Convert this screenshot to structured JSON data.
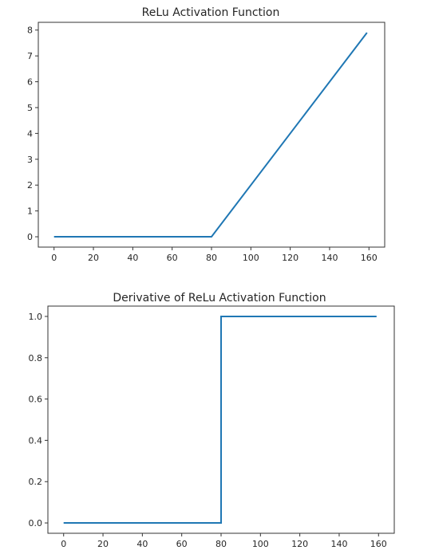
{
  "chart_data": [
    {
      "type": "line",
      "title": "ReLu Activation Function",
      "xlabel": "",
      "ylabel": "",
      "xlim": [
        -8,
        168
      ],
      "ylim": [
        -0.4,
        8.3
      ],
      "xticks": [
        0,
        20,
        40,
        60,
        80,
        100,
        120,
        140,
        160
      ],
      "yticks": [
        0,
        1,
        2,
        3,
        4,
        5,
        6,
        7,
        8
      ],
      "ytick_decimals": 0,
      "grid": false,
      "series": [
        {
          "color": "#1f77b4",
          "x": [
            0,
            80,
            159
          ],
          "y": [
            0,
            0,
            7.9
          ]
        }
      ]
    },
    {
      "type": "line",
      "title": "Derivative of ReLu Activation Function",
      "xlabel": "",
      "ylabel": "",
      "xlim": [
        -8,
        168
      ],
      "ylim": [
        -0.05,
        1.05
      ],
      "xticks": [
        0,
        20,
        40,
        60,
        80,
        100,
        120,
        140,
        160
      ],
      "yticks": [
        0.0,
        0.2,
        0.4,
        0.6,
        0.8,
        1.0
      ],
      "ytick_decimals": 1,
      "grid": false,
      "series": [
        {
          "color": "#1f77b4",
          "x": [
            0,
            80,
            80,
            159
          ],
          "y": [
            0,
            0,
            1,
            1
          ]
        }
      ]
    }
  ]
}
